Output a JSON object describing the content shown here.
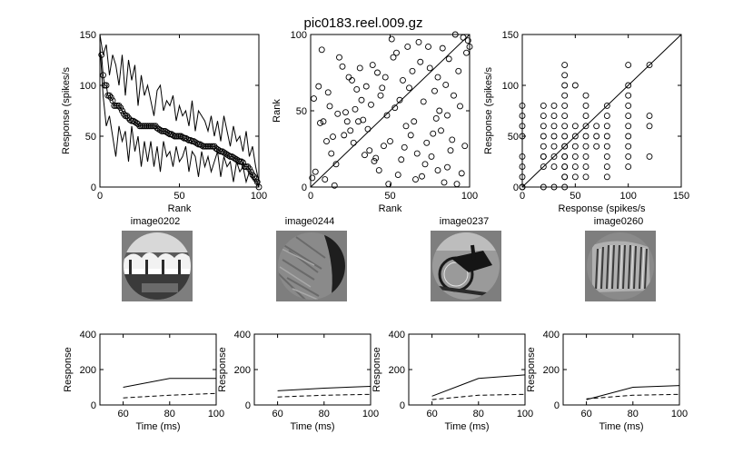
{
  "figure_title": "pic0183.reel.009.gz",
  "chart_data": [
    {
      "id": "rank-response",
      "type": "line",
      "title": "",
      "xlabel": "Rank",
      "ylabel": "Response (spikes/s",
      "xlim": [
        0,
        100
      ],
      "ylim": [
        0,
        150
      ],
      "xticks": [
        0,
        50,
        100
      ],
      "yticks": [
        0,
        50,
        100,
        150
      ],
      "series": [
        {
          "marker": "circle",
          "x": [
            1,
            2,
            3,
            4,
            5,
            6,
            7,
            8,
            9,
            10,
            11,
            12,
            13,
            14,
            15,
            16,
            17,
            18,
            19,
            20,
            21,
            22,
            23,
            24,
            25,
            26,
            27,
            28,
            29,
            30,
            31,
            32,
            33,
            34,
            35,
            36,
            37,
            38,
            39,
            40,
            41,
            42,
            43,
            44,
            45,
            46,
            47,
            48,
            49,
            50,
            51,
            52,
            53,
            54,
            55,
            56,
            57,
            58,
            59,
            60,
            61,
            62,
            63,
            64,
            65,
            66,
            67,
            68,
            69,
            70,
            71,
            72,
            73,
            74,
            75,
            76,
            77,
            78,
            79,
            80,
            81,
            82,
            83,
            84,
            85,
            86,
            87,
            88,
            89,
            90,
            91,
            92,
            93,
            94,
            95,
            96,
            97,
            98,
            99,
            100
          ],
          "y": [
            130,
            110,
            100,
            100,
            90,
            90,
            88,
            85,
            80,
            80,
            80,
            80,
            78,
            75,
            72,
            70,
            70,
            68,
            66,
            65,
            65,
            64,
            63,
            62,
            60,
            60,
            60,
            60,
            60,
            60,
            60,
            60,
            60,
            60,
            60,
            58,
            57,
            56,
            55,
            55,
            55,
            54,
            53,
            52,
            52,
            51,
            50,
            50,
            50,
            50,
            50,
            49,
            48,
            48,
            47,
            46,
            46,
            45,
            45,
            44,
            43,
            42,
            42,
            41,
            40,
            40,
            40,
            40,
            40,
            40,
            40,
            40,
            38,
            37,
            36,
            35,
            35,
            34,
            33,
            32,
            31,
            30,
            30,
            29,
            28,
            27,
            26,
            25,
            25,
            24,
            20,
            20,
            20,
            18,
            15,
            12,
            10,
            8,
            5,
            0
          ]
        },
        {
          "marker": "none",
          "x": [
            0,
            2,
            4,
            6,
            8,
            10,
            12,
            14,
            16,
            18,
            20,
            22,
            24,
            26,
            28,
            30,
            32,
            34,
            36,
            38,
            40,
            42,
            44,
            46,
            48,
            50,
            52,
            54,
            56,
            58,
            60,
            62,
            64,
            66,
            68,
            70,
            72,
            74,
            76,
            78,
            80,
            82,
            84,
            86,
            88,
            90,
            92,
            94,
            96,
            98,
            100
          ],
          "y": [
            150,
            130,
            140,
            110,
            130,
            120,
            100,
            130,
            90,
            125,
            105,
            120,
            80,
            110,
            90,
            100,
            85,
            70,
            95,
            100,
            75,
            85,
            80,
            90,
            65,
            80,
            70,
            75,
            60,
            85,
            55,
            75,
            70,
            65,
            55,
            70,
            50,
            65,
            45,
            70,
            55,
            40,
            60,
            45,
            50,
            35,
            55,
            30,
            40,
            20,
            5
          ]
        },
        {
          "marker": "none",
          "x": [
            0,
            2,
            4,
            6,
            8,
            10,
            12,
            14,
            16,
            18,
            20,
            22,
            24,
            26,
            28,
            30,
            32,
            34,
            36,
            38,
            40,
            42,
            44,
            46,
            48,
            50,
            52,
            54,
            56,
            58,
            60,
            62,
            64,
            66,
            68,
            70,
            72,
            74,
            76,
            78,
            80,
            82,
            84,
            86,
            88,
            90,
            92,
            94,
            96,
            98,
            100
          ],
          "y": [
            140,
            90,
            60,
            70,
            50,
            30,
            60,
            45,
            55,
            25,
            60,
            35,
            50,
            20,
            45,
            25,
            45,
            20,
            40,
            15,
            45,
            30,
            35,
            20,
            40,
            25,
            30,
            40,
            15,
            35,
            30,
            10,
            35,
            20,
            30,
            15,
            25,
            35,
            10,
            30,
            20,
            25,
            5,
            25,
            15,
            20,
            5,
            15,
            10,
            5,
            0
          ]
        }
      ]
    },
    {
      "id": "rank-rank",
      "type": "scatter",
      "title": "",
      "xlabel": "Rank",
      "ylabel": "Rank",
      "xlim": [
        0,
        100
      ],
      "ylim": [
        0,
        100
      ],
      "xticks": [
        0,
        50,
        100
      ],
      "yticks": [
        0,
        50,
        100
      ],
      "reference_line": [
        [
          0,
          0
        ],
        [
          100,
          100
        ]
      ],
      "x": [
        2,
        3,
        5,
        6,
        7,
        8,
        9,
        10,
        12,
        13,
        14,
        15,
        17,
        18,
        20,
        21,
        22,
        23,
        25,
        26,
        27,
        28,
        29,
        30,
        31,
        32,
        33,
        34,
        35,
        36,
        38,
        39,
        40,
        41,
        42,
        43,
        44,
        45,
        46,
        47,
        48,
        50,
        51,
        52,
        53,
        55,
        56,
        57,
        58,
        59,
        60,
        61,
        62,
        63,
        64,
        65,
        66,
        67,
        68,
        69,
        70,
        71,
        72,
        73,
        74,
        75,
        76,
        77,
        78,
        79,
        80,
        81,
        82,
        83,
        84,
        85,
        86,
        87,
        88,
        89,
        90,
        91,
        92,
        93,
        94,
        95,
        96,
        97,
        98,
        99,
        100,
        1,
        11,
        16,
        24,
        37,
        49,
        54,
        80,
        86
      ],
      "y": [
        58,
        10,
        66,
        42,
        90,
        43,
        5,
        30,
        53,
        22,
        33,
        1,
        48,
        85,
        79,
        34,
        49,
        43,
        37,
        70,
        29,
        51,
        64,
        43,
        78,
        57,
        44,
        21,
        66,
        38,
        54,
        80,
        17,
        19,
        75,
        11,
        60,
        65,
        27,
        72,
        47,
        30,
        97,
        85,
        52,
        8,
        57,
        18,
        70,
        26,
        40,
        92,
        65,
        34,
        76,
        43,
        5,
        22,
        95,
        82,
        7,
        56,
        15,
        29,
        92,
        78,
        20,
        35,
        63,
        45,
        72,
        50,
        37,
        91,
        3,
        67,
        47,
        84,
        24,
        31,
        60,
        100,
        2,
        76,
        53,
        9,
        98,
        27,
        88,
        96,
        92,
        6,
        62,
        15,
        72,
        24,
        2,
        88,
        11,
        13
      ]
    },
    {
      "id": "response-response",
      "type": "scatter",
      "title": "",
      "xlabel": "Response (spikes/s",
      "ylabel": "Response (spikes/s",
      "xlim": [
        0,
        150
      ],
      "ylim": [
        0,
        150
      ],
      "xticks": [
        0,
        50,
        100,
        150
      ],
      "yticks": [
        0,
        50,
        100,
        150
      ],
      "reference_line": [
        [
          0,
          0
        ],
        [
          150,
          150
        ]
      ],
      "x": [
        0,
        0,
        0,
        0,
        0,
        0,
        0,
        0,
        0,
        20,
        20,
        20,
        20,
        20,
        20,
        20,
        20,
        20,
        30,
        30,
        30,
        30,
        30,
        30,
        30,
        30,
        40,
        40,
        40,
        40,
        40,
        40,
        40,
        40,
        40,
        40,
        40,
        40,
        40,
        40,
        40,
        40,
        40,
        50,
        50,
        50,
        50,
        50,
        50,
        50,
        60,
        60,
        60,
        60,
        60,
        60,
        60,
        60,
        60,
        70,
        70,
        70,
        80,
        80,
        80,
        80,
        80,
        80,
        80,
        80,
        100,
        100,
        100,
        100,
        100,
        100,
        100,
        100,
        100,
        100,
        120,
        120,
        120,
        120
      ],
      "y": [
        0,
        10,
        20,
        30,
        50,
        60,
        70,
        80,
        0,
        0,
        20,
        30,
        40,
        50,
        60,
        70,
        80,
        30,
        20,
        30,
        40,
        50,
        60,
        70,
        80,
        0,
        0,
        10,
        20,
        30,
        40,
        50,
        60,
        70,
        80,
        90,
        100,
        110,
        120,
        10,
        20,
        30,
        40,
        100,
        60,
        50,
        40,
        30,
        20,
        10,
        80,
        70,
        60,
        50,
        40,
        30,
        20,
        10,
        90,
        60,
        50,
        40,
        80,
        70,
        60,
        50,
        40,
        30,
        20,
        10,
        100,
        120,
        90,
        80,
        70,
        60,
        50,
        40,
        30,
        20,
        60,
        70,
        120,
        30
      ]
    },
    {
      "id": "psth-1",
      "type": "line",
      "title": "",
      "xlabel": "Time (ms)",
      "ylabel": "Response",
      "xlim": [
        50,
        100
      ],
      "ylim": [
        0,
        400
      ],
      "xticks": [
        60,
        80,
        100
      ],
      "yticks": [
        0,
        200,
        400
      ],
      "x": [
        60,
        80,
        100
      ],
      "series": [
        {
          "style": "solid",
          "values": [
            100,
            150,
            150
          ]
        },
        {
          "style": "dashed",
          "values": [
            40,
            55,
            65
          ]
        }
      ]
    },
    {
      "id": "psth-2",
      "type": "line",
      "title": "",
      "xlabel": "Time (ms)",
      "ylabel": "Response",
      "xlim": [
        50,
        100
      ],
      "ylim": [
        0,
        400
      ],
      "xticks": [
        60,
        80,
        100
      ],
      "yticks": [
        0,
        200,
        400
      ],
      "x": [
        60,
        80,
        100
      ],
      "series": [
        {
          "style": "solid",
          "values": [
            80,
            95,
            105
          ]
        },
        {
          "style": "dashed",
          "values": [
            45,
            55,
            60
          ]
        }
      ]
    },
    {
      "id": "psth-3",
      "type": "line",
      "title": "",
      "xlabel": "Time (ms)",
      "ylabel": "Response",
      "xlim": [
        50,
        100
      ],
      "ylim": [
        0,
        400
      ],
      "xticks": [
        60,
        80,
        100
      ],
      "yticks": [
        0,
        200,
        400
      ],
      "x": [
        60,
        80,
        100
      ],
      "series": [
        {
          "style": "solid",
          "values": [
            50,
            150,
            170
          ]
        },
        {
          "style": "dashed",
          "values": [
            30,
            55,
            60
          ]
        }
      ]
    },
    {
      "id": "psth-4",
      "type": "line",
      "title": "",
      "xlabel": "Time (ms)",
      "ylabel": "Response",
      "xlim": [
        50,
        100
      ],
      "ylim": [
        0,
        400
      ],
      "xticks": [
        60,
        80,
        100
      ],
      "yticks": [
        0,
        200,
        400
      ],
      "x": [
        60,
        80,
        100
      ],
      "series": [
        {
          "style": "solid",
          "values": [
            30,
            100,
            110
          ]
        },
        {
          "style": "dashed",
          "values": [
            35,
            55,
            60
          ]
        }
      ]
    }
  ],
  "images": [
    {
      "title": "image0202",
      "icon": "stimulus-image-fence-scene"
    },
    {
      "title": "image0244",
      "icon": "stimulus-image-grass-texture"
    },
    {
      "title": "image0237",
      "icon": "stimulus-image-bicycle"
    },
    {
      "title": "image0260",
      "icon": "stimulus-image-grating"
    }
  ]
}
